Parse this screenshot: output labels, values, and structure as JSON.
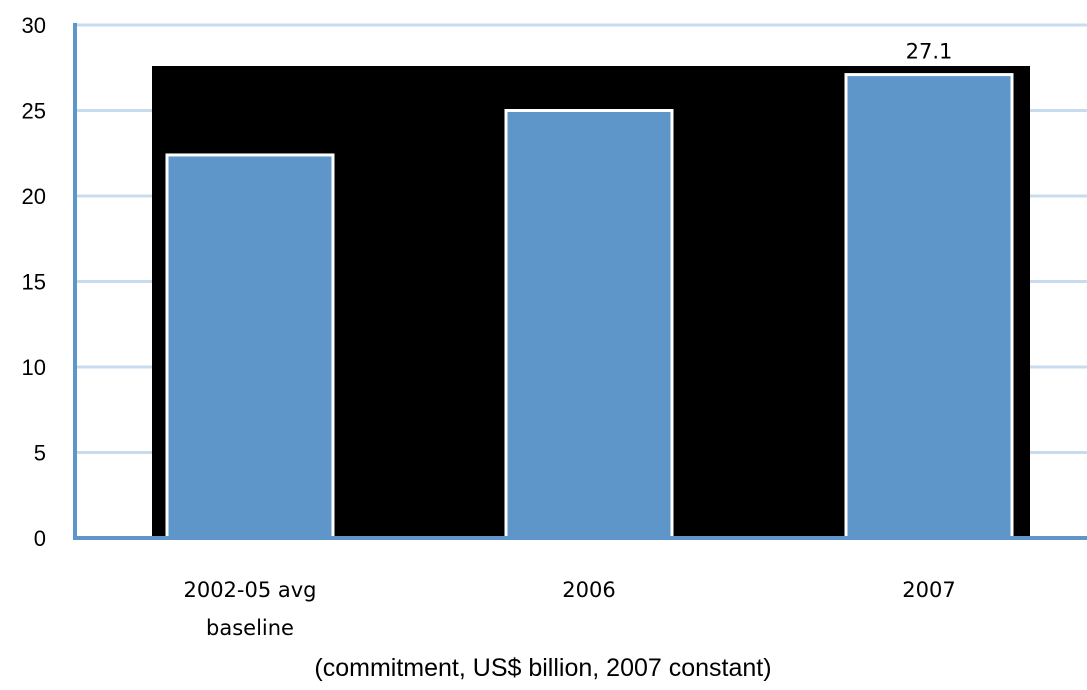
{
  "chart_data": {
    "type": "bar",
    "categories": [
      [
        "2002-05 avg",
        "baseline"
      ],
      [
        "2006"
      ],
      [
        "2007"
      ]
    ],
    "values": [
      22.4,
      25.0,
      27.1
    ],
    "data_labels": [
      "",
      "",
      "27.1"
    ],
    "xlabel": "(commitment, US$ billion, 2007 constant)",
    "ylabel": "",
    "ylim": [
      0,
      30
    ],
    "yticks": [
      0,
      5,
      10,
      15,
      20,
      25,
      30
    ],
    "grid": true,
    "colors": {
      "bar": "#5f96c9",
      "bar_border": "#ffffff",
      "plot_area": "#000000",
      "grid": "#c9dcee",
      "axis": "#5f96c9"
    }
  }
}
